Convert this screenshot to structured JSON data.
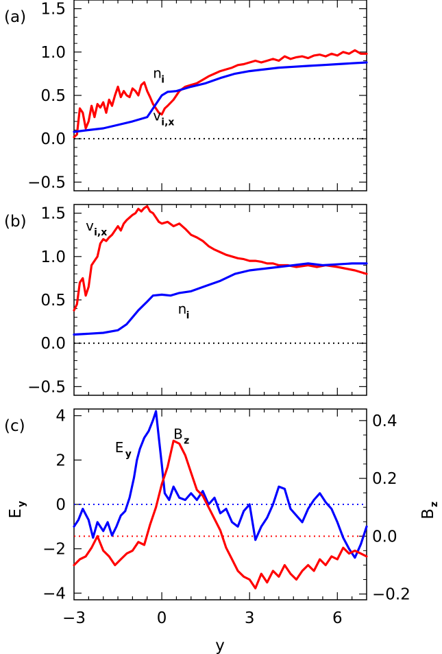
{
  "chart_data": [
    {
      "panel": "(a)",
      "type": "line",
      "xlim": [
        -3,
        7
      ],
      "ylim": [
        -0.6,
        1.6
      ],
      "yticks": [
        -0.5,
        0.0,
        0.5,
        1.0,
        1.5
      ],
      "ytick_labels": [
        "−0.5",
        "0.0",
        "0.5",
        "1.0",
        "1.5"
      ],
      "hline": 0.0,
      "series": [
        {
          "name": "v_i,x",
          "color": "#ff0000",
          "x": [
            -3.0,
            -2.9,
            -2.8,
            -2.7,
            -2.6,
            -2.5,
            -2.4,
            -2.3,
            -2.2,
            -2.1,
            -2.0,
            -1.9,
            -1.8,
            -1.7,
            -1.6,
            -1.5,
            -1.4,
            -1.3,
            -1.2,
            -1.1,
            -1.0,
            -0.9,
            -0.8,
            -0.7,
            -0.6,
            -0.5,
            -0.4,
            -0.3,
            -0.2,
            -0.1,
            0.0,
            0.1,
            0.2,
            0.4,
            0.6,
            0.8,
            1.0,
            1.2,
            1.4,
            1.6,
            1.8,
            2.0,
            2.2,
            2.4,
            2.6,
            2.8,
            3.0,
            3.2,
            3.4,
            3.6,
            3.8,
            4.0,
            4.2,
            4.4,
            4.6,
            4.8,
            5.0,
            5.2,
            5.4,
            5.6,
            5.8,
            6.0,
            6.2,
            6.4,
            6.6,
            6.8,
            7.0
          ],
          "y": [
            0.02,
            0.05,
            0.35,
            0.3,
            0.12,
            0.2,
            0.38,
            0.25,
            0.4,
            0.36,
            0.42,
            0.3,
            0.45,
            0.38,
            0.5,
            0.6,
            0.48,
            0.55,
            0.5,
            0.48,
            0.58,
            0.55,
            0.5,
            0.62,
            0.65,
            0.55,
            0.48,
            0.4,
            0.35,
            0.3,
            0.28,
            0.35,
            0.38,
            0.45,
            0.55,
            0.6,
            0.62,
            0.64,
            0.68,
            0.72,
            0.75,
            0.78,
            0.8,
            0.82,
            0.85,
            0.86,
            0.88,
            0.9,
            0.88,
            0.9,
            0.92,
            0.9,
            0.95,
            0.92,
            0.94,
            0.95,
            0.93,
            0.96,
            0.97,
            0.95,
            0.98,
            0.96,
            1.0,
            0.98,
            1.02,
            0.98,
            0.98
          ]
        },
        {
          "name": "n_i",
          "color": "#0000ff",
          "x": [
            -3.0,
            -2.5,
            -2.0,
            -1.5,
            -1.0,
            -0.5,
            -0.2,
            0.0,
            0.2,
            0.5,
            1.0,
            1.5,
            2.0,
            2.5,
            3.0,
            3.5,
            4.0,
            4.5,
            5.0,
            5.5,
            6.0,
            6.5,
            7.0
          ],
          "y": [
            0.08,
            0.1,
            0.12,
            0.16,
            0.2,
            0.25,
            0.4,
            0.5,
            0.54,
            0.55,
            0.6,
            0.64,
            0.7,
            0.75,
            0.78,
            0.8,
            0.82,
            0.83,
            0.84,
            0.85,
            0.86,
            0.87,
            0.88
          ]
        }
      ],
      "annotations": [
        {
          "main": "n",
          "sub": "i",
          "x": -0.3,
          "y": 0.7
        },
        {
          "main": "v",
          "sub": "i,x",
          "x": -0.3,
          "y": 0.21
        }
      ]
    },
    {
      "panel": "(b)",
      "type": "line",
      "xlim": [
        -3,
        7
      ],
      "ylim": [
        -0.6,
        1.6
      ],
      "yticks": [
        -0.5,
        0.0,
        0.5,
        1.0,
        1.5
      ],
      "ytick_labels": [
        "−0.5",
        "0.0",
        "0.5",
        "1.0",
        "1.5"
      ],
      "hline": 0.0,
      "series": [
        {
          "name": "v_i,x",
          "color": "#ff0000",
          "x": [
            -3.0,
            -2.9,
            -2.8,
            -2.7,
            -2.6,
            -2.5,
            -2.4,
            -2.3,
            -2.2,
            -2.1,
            -2.0,
            -1.9,
            -1.8,
            -1.7,
            -1.6,
            -1.5,
            -1.4,
            -1.3,
            -1.2,
            -1.1,
            -1.0,
            -0.9,
            -0.8,
            -0.7,
            -0.6,
            -0.5,
            -0.4,
            -0.3,
            -0.2,
            -0.1,
            0.0,
            0.2,
            0.4,
            0.6,
            0.8,
            1.0,
            1.2,
            1.4,
            1.6,
            1.8,
            2.0,
            2.2,
            2.4,
            2.6,
            2.8,
            3.0,
            3.2,
            3.4,
            3.6,
            3.8,
            4.0,
            4.3,
            4.6,
            5.0,
            5.3,
            5.6,
            6.0,
            6.3,
            6.6,
            7.0
          ],
          "y": [
            0.38,
            0.45,
            0.7,
            0.75,
            0.55,
            0.65,
            0.9,
            0.95,
            1.0,
            1.15,
            1.2,
            1.18,
            1.22,
            1.25,
            1.3,
            1.35,
            1.3,
            1.38,
            1.42,
            1.45,
            1.48,
            1.5,
            1.55,
            1.52,
            1.56,
            1.58,
            1.52,
            1.5,
            1.45,
            1.4,
            1.38,
            1.4,
            1.35,
            1.38,
            1.32,
            1.25,
            1.22,
            1.18,
            1.12,
            1.08,
            1.05,
            1.02,
            1.0,
            0.98,
            0.97,
            0.95,
            0.95,
            0.94,
            0.92,
            0.92,
            0.9,
            0.9,
            0.88,
            0.9,
            0.88,
            0.9,
            0.88,
            0.86,
            0.84,
            0.8
          ]
        },
        {
          "name": "n_i",
          "color": "#0000ff",
          "x": [
            -3.0,
            -2.5,
            -2.0,
            -1.5,
            -1.2,
            -1.0,
            -0.8,
            -0.5,
            -0.3,
            0.0,
            0.3,
            0.6,
            1.0,
            1.5,
            2.0,
            2.5,
            3.0,
            3.5,
            4.0,
            4.5,
            5.0,
            5.5,
            6.0,
            6.5,
            7.0
          ],
          "y": [
            0.1,
            0.11,
            0.12,
            0.15,
            0.22,
            0.3,
            0.38,
            0.48,
            0.55,
            0.56,
            0.55,
            0.58,
            0.6,
            0.66,
            0.72,
            0.8,
            0.84,
            0.86,
            0.88,
            0.9,
            0.92,
            0.9,
            0.91,
            0.92,
            0.92
          ]
        }
      ],
      "annotations": [
        {
          "main": "v",
          "sub": "i,x",
          "x": -2.6,
          "y": 1.3
        },
        {
          "main": "n",
          "sub": "i",
          "x": 0.55,
          "y": 0.34
        }
      ]
    },
    {
      "panel": "(c)",
      "type": "line",
      "xlim": [
        -3,
        7
      ],
      "xticks": [
        -3,
        0,
        3,
        6
      ],
      "xtick_labels": [
        "−3",
        "0",
        "3",
        "6"
      ],
      "xlabel": "y",
      "ylim_left": [
        -4.3,
        4.3
      ],
      "yticks_left": [
        -4,
        -2,
        0,
        2,
        4
      ],
      "ytick_labels_left": [
        "−4",
        "−2",
        "0",
        "2",
        "4"
      ],
      "ylabel_left": "E",
      "ylabel_left_sub": "y",
      "ylim_right": [
        -0.22,
        0.44
      ],
      "yticks_right": [
        -0.2,
        0.0,
        0.2,
        0.4
      ],
      "ytick_labels_right": [
        "−0.2",
        "0.0",
        "0.2",
        "0.4"
      ],
      "ylabel_right": "B",
      "ylabel_right_sub": "z",
      "hline_left": 0.0,
      "hline_right": 0.0,
      "series": [
        {
          "name": "E_y",
          "axis": "left",
          "color": "#0000ff",
          "x": [
            -3.0,
            -2.85,
            -2.7,
            -2.5,
            -2.35,
            -2.2,
            -2.0,
            -1.85,
            -1.7,
            -1.55,
            -1.4,
            -1.25,
            -1.1,
            -0.95,
            -0.85,
            -0.75,
            -0.6,
            -0.45,
            -0.3,
            -0.2,
            -0.1,
            0.0,
            0.1,
            0.25,
            0.4,
            0.6,
            0.8,
            1.0,
            1.2,
            1.4,
            1.6,
            1.8,
            2.0,
            2.2,
            2.4,
            2.6,
            2.8,
            3.0,
            3.2,
            3.4,
            3.6,
            3.8,
            4.0,
            4.2,
            4.4,
            4.6,
            4.8,
            5.0,
            5.2,
            5.4,
            5.6,
            5.8,
            6.0,
            6.2,
            6.4,
            6.6,
            6.8,
            7.0
          ],
          "y": [
            -1.0,
            -0.7,
            -0.2,
            -0.7,
            -1.5,
            -0.8,
            -1.2,
            -0.8,
            -1.4,
            -1.0,
            -0.5,
            -0.3,
            0.3,
            1.2,
            2.0,
            2.5,
            3.0,
            3.3,
            3.8,
            4.2,
            3.0,
            1.8,
            0.5,
            0.2,
            0.8,
            0.3,
            0.2,
            0.5,
            0.2,
            0.6,
            0.0,
            0.3,
            -0.4,
            -0.2,
            -0.8,
            -1.0,
            -0.3,
            0.0,
            -1.6,
            -1.0,
            -0.6,
            0.0,
            0.8,
            0.7,
            -0.2,
            -0.5,
            -0.8,
            -0.2,
            0.2,
            0.5,
            0.1,
            -0.2,
            -0.8,
            -1.5,
            -2.0,
            -2.4,
            -1.8,
            -1.0
          ]
        },
        {
          "name": "B_z",
          "axis": "right",
          "color": "#ff0000",
          "x": [
            -3.0,
            -2.8,
            -2.6,
            -2.4,
            -2.2,
            -2.0,
            -1.8,
            -1.6,
            -1.4,
            -1.2,
            -1.0,
            -0.8,
            -0.6,
            -0.4,
            -0.2,
            0.0,
            0.2,
            0.4,
            0.6,
            0.8,
            1.0,
            1.2,
            1.4,
            1.6,
            1.8,
            2.0,
            2.2,
            2.4,
            2.6,
            2.8,
            3.0,
            3.2,
            3.4,
            3.6,
            3.8,
            4.0,
            4.2,
            4.4,
            4.6,
            4.8,
            5.0,
            5.2,
            5.4,
            5.6,
            5.8,
            6.0,
            6.2,
            6.4,
            6.6,
            6.8,
            7.0
          ],
          "y": [
            -0.1,
            -0.08,
            -0.07,
            -0.04,
            0.0,
            -0.05,
            -0.07,
            -0.1,
            -0.08,
            -0.06,
            -0.05,
            -0.02,
            -0.03,
            0.04,
            0.1,
            0.18,
            0.24,
            0.33,
            0.32,
            0.28,
            0.22,
            0.16,
            0.14,
            0.1,
            0.06,
            0.02,
            -0.04,
            -0.08,
            -0.12,
            -0.14,
            -0.15,
            -0.18,
            -0.13,
            -0.16,
            -0.12,
            -0.14,
            -0.1,
            -0.13,
            -0.15,
            -0.12,
            -0.1,
            -0.12,
            -0.08,
            -0.1,
            -0.07,
            -0.08,
            -0.04,
            -0.06,
            -0.05,
            -0.06,
            -0.07
          ]
        }
      ],
      "annotations": [
        {
          "main": "E",
          "sub": "y",
          "x": -1.6,
          "y": 2.35,
          "axis": "left"
        },
        {
          "main": "B",
          "sub": "z",
          "x": 0.4,
          "y": 2.95,
          "axis": "left"
        }
      ]
    }
  ]
}
